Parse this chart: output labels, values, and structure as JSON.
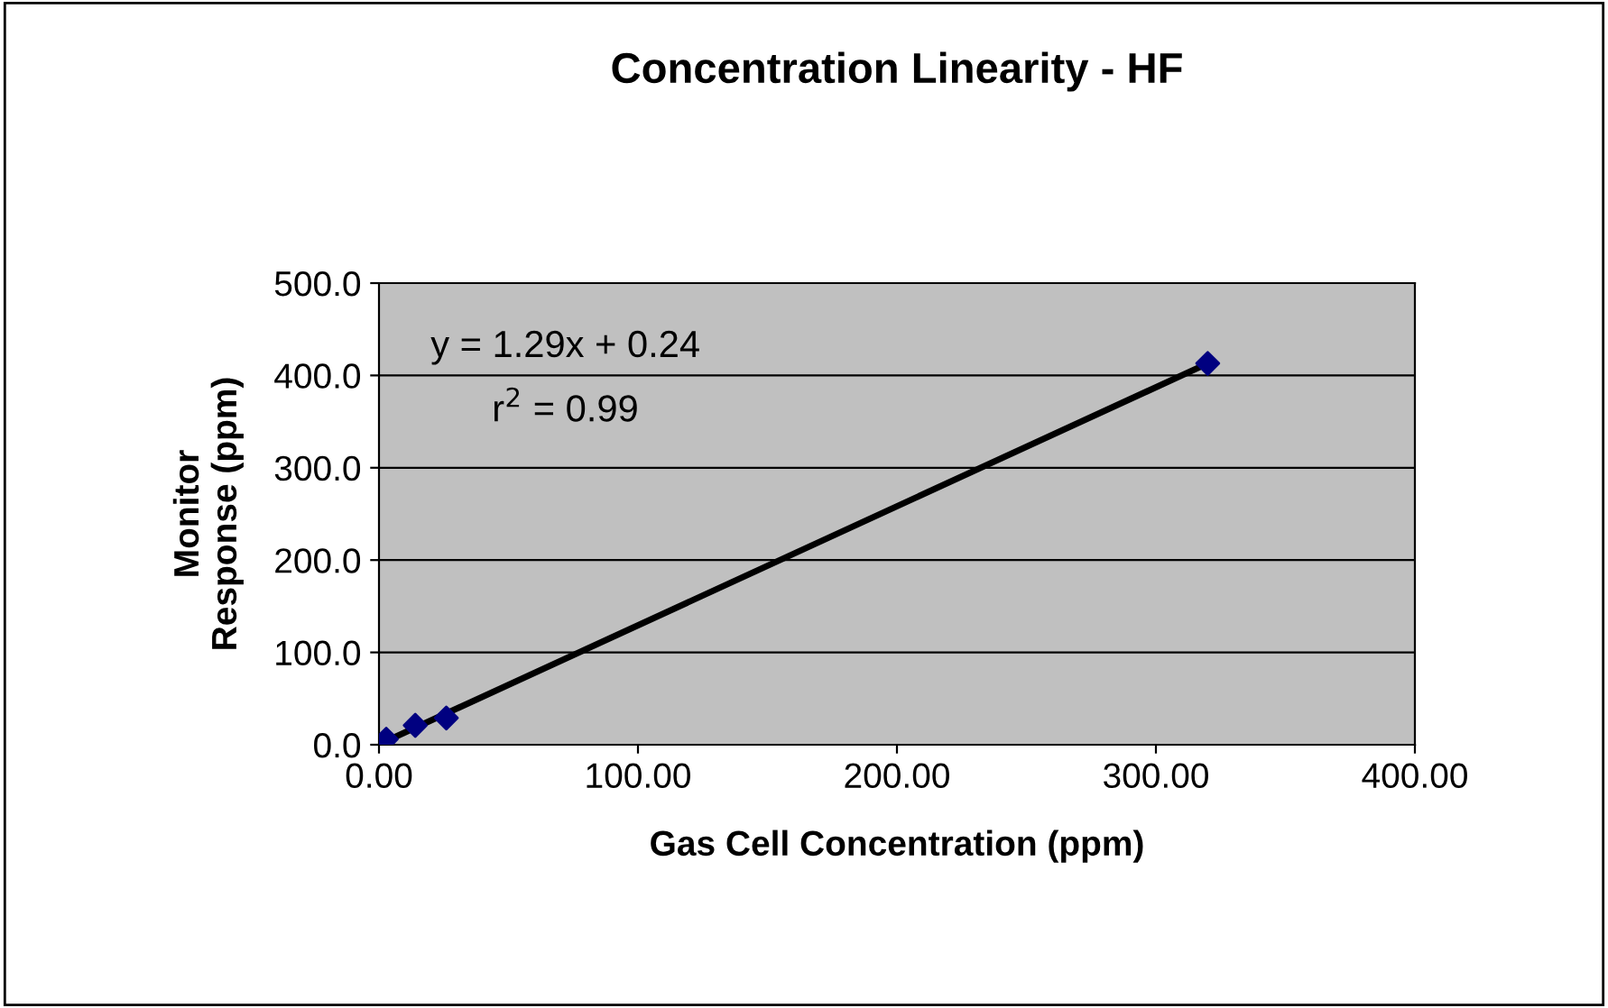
{
  "chart_data": {
    "type": "scatter",
    "title": "Concentration Linearity - HF",
    "xlabel": "Gas Cell Concentration (ppm)",
    "ylabel": "Monitor\nResponse (ppm)",
    "series": [
      {
        "type": "line",
        "color": "#000000",
        "x": [
          2.8,
          320
        ],
        "values": [
          4,
          413
        ],
        "marker": "none"
      },
      {
        "color": "#000080",
        "x": [
          2.8,
          14,
          26,
          320
        ],
        "values": [
          6,
          21,
          29,
          413
        ],
        "marker": "diamond"
      }
    ],
    "annotations": [
      "y = 1.29x + 0.24",
      "r$^{2}$ = 0.99"
    ],
    "xlim": [
      0,
      400
    ],
    "xticks": [
      {
        "value": 0,
        "label": "0.00"
      },
      {
        "value": 100,
        "label": "100.00"
      },
      {
        "value": 200,
        "label": "200.00"
      },
      {
        "value": 300,
        "label": "300.00"
      },
      {
        "value": 400,
        "label": "400.00"
      }
    ],
    "ylim": [
      0,
      500
    ],
    "yticks": [
      {
        "value": 0,
        "label": "0.0"
      },
      {
        "value": 100,
        "label": "100.0"
      },
      {
        "value": 200,
        "label": "200.0"
      },
      {
        "value": 300,
        "label": "300.0"
      },
      {
        "value": 400,
        "label": "400.0"
      },
      {
        "value": 500,
        "label": "500.0"
      }
    ],
    "grid": "y",
    "legend": false
  }
}
